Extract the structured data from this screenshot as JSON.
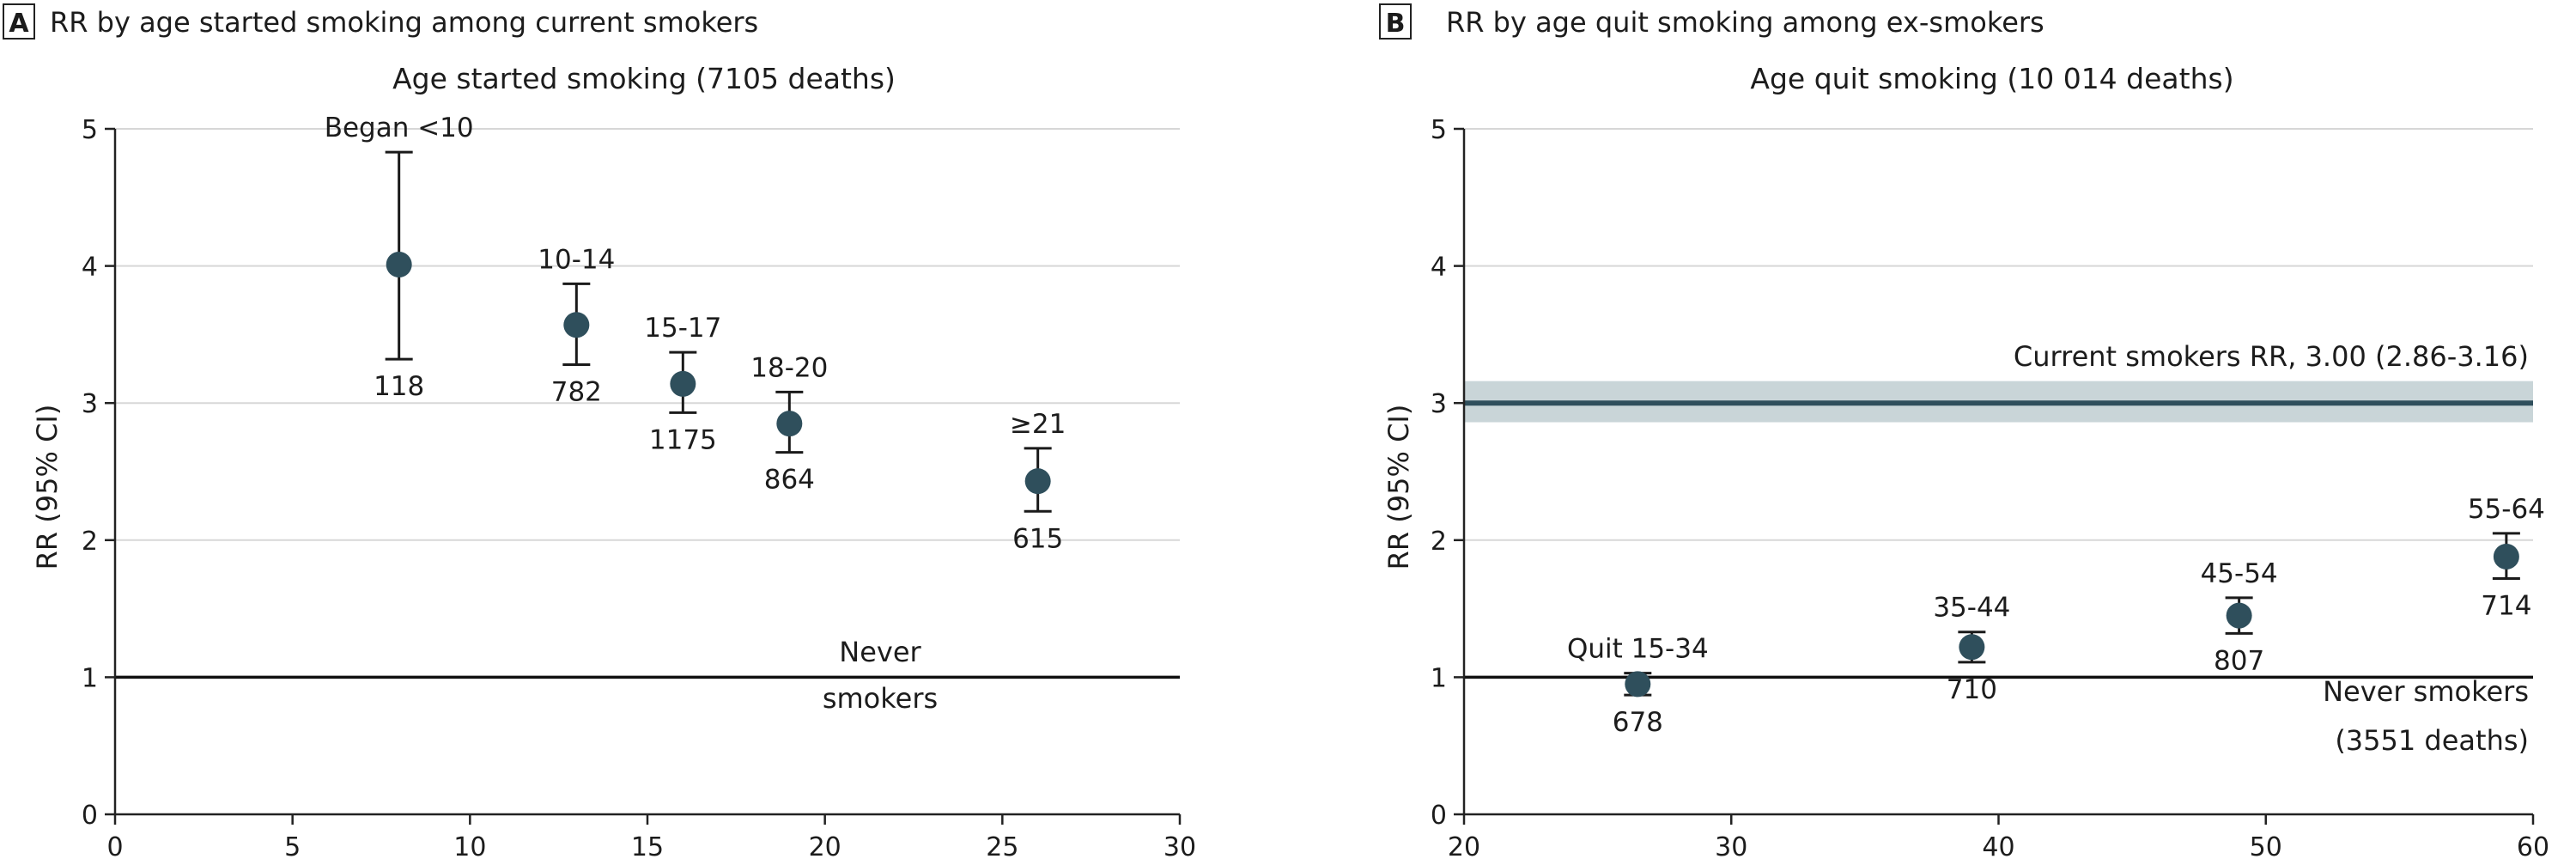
{
  "chart_data": [
    {
      "type": "scatter",
      "panel_letter": "A",
      "title": "RR by age started smoking among current smokers",
      "subtitle": "Age started smoking (7105 deaths)",
      "ylabel": "RR (95% CI)",
      "xlabel": "",
      "xlim": [
        0,
        30
      ],
      "ylim": [
        0,
        5
      ],
      "x_ticks": [
        "0",
        "5",
        "10",
        "15",
        "20",
        "25",
        "30"
      ],
      "y_ticks": [
        "0",
        "1",
        "2",
        "3",
        "4",
        "5"
      ],
      "grid": "horizontal",
      "reference_line": {
        "y": 1,
        "label_lines": [
          "Never",
          "smokers"
        ]
      },
      "points": [
        {
          "x": 8,
          "y": 4.01,
          "ci": [
            3.32,
            4.83
          ],
          "group": "Began <10",
          "deaths": "118"
        },
        {
          "x": 13,
          "y": 3.57,
          "ci": [
            3.28,
            3.87
          ],
          "group": "10-14",
          "deaths": "782"
        },
        {
          "x": 16,
          "y": 3.14,
          "ci": [
            2.93,
            3.37
          ],
          "group": "15-17",
          "deaths": "1175"
        },
        {
          "x": 19,
          "y": 2.85,
          "ci": [
            2.64,
            3.08
          ],
          "group": "18-20",
          "deaths": "864"
        },
        {
          "x": 26,
          "y": 2.43,
          "ci": [
            2.21,
            2.67
          ],
          "group": "≥21",
          "deaths": "615"
        }
      ]
    },
    {
      "type": "scatter",
      "panel_letter": "B",
      "title": "RR by age quit smoking among ex-smokers",
      "subtitle": "Age quit smoking (10 014 deaths)",
      "ylabel": "RR (95% CI)",
      "xlabel": "",
      "xlim": [
        20,
        60
      ],
      "ylim": [
        0,
        5
      ],
      "x_ticks": [
        "20",
        "30",
        "40",
        "50",
        "60"
      ],
      "y_ticks": [
        "0",
        "1",
        "2",
        "3",
        "4",
        "5"
      ],
      "grid": "horizontal",
      "reference_line": {
        "y": 1,
        "label_lines": [
          "Never smokers",
          "(3551 deaths)"
        ]
      },
      "current_smokers": {
        "y": 3.0,
        "ci": [
          2.86,
          3.16
        ],
        "label": "Current smokers RR, 3.00 (2.86-3.16)",
        "color": "#2f4f5c",
        "band_color": "#c9d5d8"
      },
      "points": [
        {
          "x": 26.5,
          "y": 0.95,
          "ci": [
            0.87,
            1.03
          ],
          "group": "Quit 15-34",
          "deaths": "678"
        },
        {
          "x": 39,
          "y": 1.22,
          "ci": [
            1.11,
            1.33
          ],
          "group": "35-44",
          "deaths": "710"
        },
        {
          "x": 49,
          "y": 1.45,
          "ci": [
            1.32,
            1.58
          ],
          "group": "45-54",
          "deaths": "807"
        },
        {
          "x": 59,
          "y": 1.88,
          "ci": [
            1.72,
            2.05
          ],
          "group": "55-64",
          "deaths": "714"
        }
      ]
    }
  ],
  "colors": {
    "marker": "#2f4f5c",
    "grid": "#d7d7d7",
    "axis": "#222222"
  }
}
